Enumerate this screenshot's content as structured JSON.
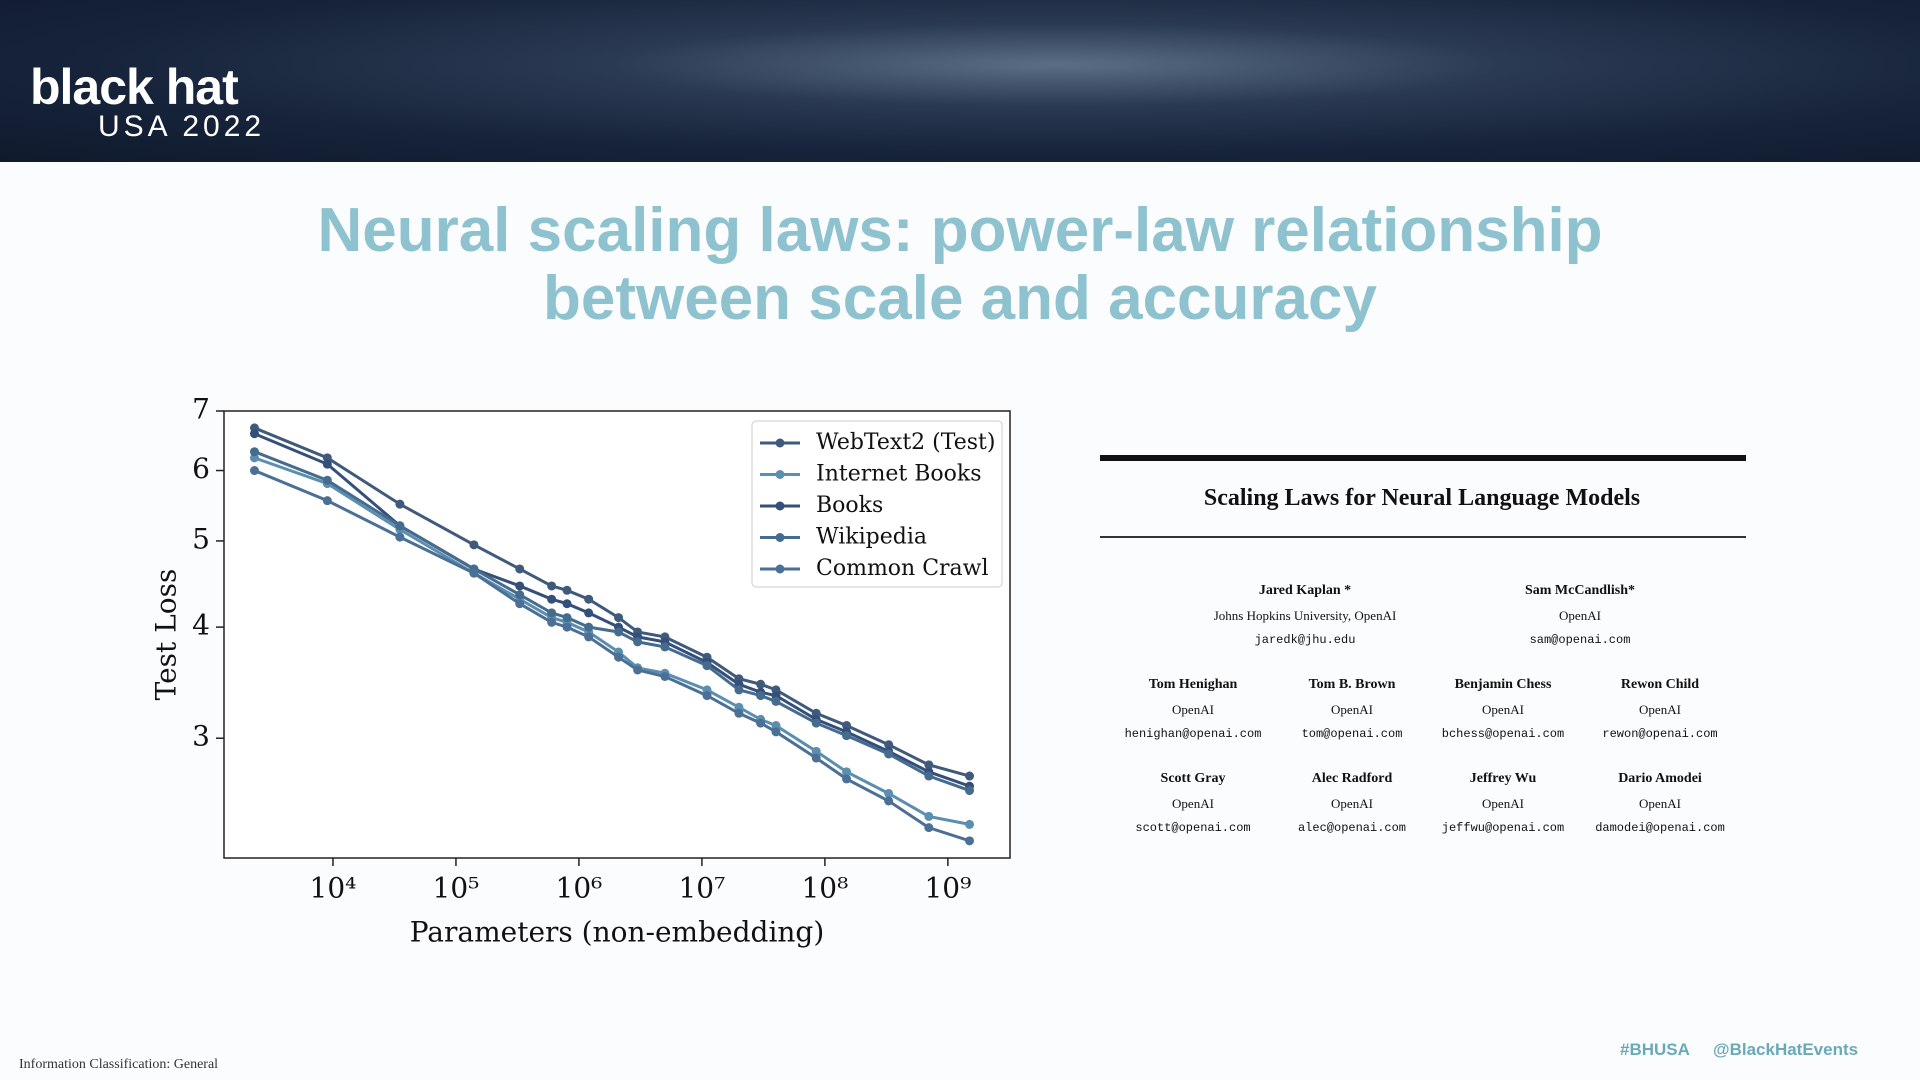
{
  "header": {
    "logo": "black hat",
    "event": "USA 2022"
  },
  "slide": {
    "title": [
      "Neural scaling laws: power-law relationship",
      "between scale and accuracy"
    ]
  },
  "chart_data": {
    "type": "line",
    "x_label": "Parameters (non-embedding)",
    "y_label": "Test Loss",
    "log_x": true,
    "log_y": true,
    "legend": "upper right",
    "xlim": [
      1300,
      3200000000
    ],
    "ylim": [
      2.2,
      7
    ],
    "xticks": [
      {
        "value": 10000,
        "label": "10⁴"
      },
      {
        "value": 100000,
        "label": "10⁵"
      },
      {
        "value": 1000000,
        "label": "10⁶"
      },
      {
        "value": 10000000,
        "label": "10⁷"
      },
      {
        "value": 100000000,
        "label": "10⁸"
      },
      {
        "value": 1000000000,
        "label": "10⁹"
      }
    ],
    "yticks": [
      3,
      4,
      5,
      6,
      7
    ],
    "x": [
      2300,
      9000,
      35000,
      140000,
      330000,
      600000,
      800000,
      1200000,
      2100000,
      3000000,
      5000000,
      11000000,
      20000000,
      30000000,
      40000000,
      85000000,
      150000000,
      330000000,
      700000000,
      1500000000
    ],
    "series": [
      {
        "name": "WebText2 (Test)",
        "color": "#3f5a7a",
        "values": [
          6.7,
          6.2,
          5.5,
          4.95,
          4.65,
          4.45,
          4.4,
          4.3,
          4.1,
          3.95,
          3.9,
          3.7,
          3.5,
          3.45,
          3.4,
          3.2,
          3.1,
          2.95,
          2.8,
          2.72
        ]
      },
      {
        "name": "Internet Books",
        "color": "#5b8fb0",
        "values": [
          6.2,
          5.8,
          5.15,
          4.6,
          4.3,
          4.1,
          4.05,
          3.95,
          3.75,
          3.6,
          3.55,
          3.4,
          3.25,
          3.15,
          3.1,
          2.9,
          2.75,
          2.6,
          2.45,
          2.4
        ]
      },
      {
        "name": "Books",
        "color": "#34507a",
        "values": [
          6.6,
          6.1,
          5.2,
          4.65,
          4.45,
          4.3,
          4.25,
          4.15,
          4.0,
          3.9,
          3.85,
          3.65,
          3.45,
          3.38,
          3.35,
          3.15,
          3.05,
          2.9,
          2.75,
          2.65
        ]
      },
      {
        "name": "Wikipedia",
        "color": "#456c8e",
        "values": [
          6.3,
          5.85,
          5.2,
          4.65,
          4.35,
          4.15,
          4.1,
          4.0,
          3.95,
          3.85,
          3.8,
          3.62,
          3.4,
          3.35,
          3.3,
          3.12,
          3.02,
          2.88,
          2.72,
          2.62
        ]
      },
      {
        "name": "Common Crawl",
        "color": "#4c6f96",
        "values": [
          6.0,
          5.55,
          5.05,
          4.6,
          4.25,
          4.05,
          4.0,
          3.9,
          3.7,
          3.58,
          3.52,
          3.35,
          3.2,
          3.12,
          3.05,
          2.85,
          2.7,
          2.55,
          2.38,
          2.3
        ]
      }
    ]
  },
  "paper": {
    "title": "Scaling Laws for Neural Language Models",
    "authors": [
      {
        "name": "Jared Kaplan *",
        "affiliation": "Johns Hopkins University, OpenAI",
        "email": "jaredk@jhu.edu"
      },
      {
        "name": "Sam McCandlish*",
        "affiliation": "OpenAI",
        "email": "sam@openai.com"
      },
      {
        "name": "Tom Henighan",
        "affiliation": "OpenAI",
        "email": "henighan@openai.com"
      },
      {
        "name": "Tom B. Brown",
        "affiliation": "OpenAI",
        "email": "tom@openai.com"
      },
      {
        "name": "Benjamin Chess",
        "affiliation": "OpenAI",
        "email": "bchess@openai.com"
      },
      {
        "name": "Rewon Child",
        "affiliation": "OpenAI",
        "email": "rewon@openai.com"
      },
      {
        "name": "Scott Gray",
        "affiliation": "OpenAI",
        "email": "scott@openai.com"
      },
      {
        "name": "Alec Radford",
        "affiliation": "OpenAI",
        "email": "alec@openai.com"
      },
      {
        "name": "Jeffrey Wu",
        "affiliation": "OpenAI",
        "email": "jeffwu@openai.com"
      },
      {
        "name": "Dario Amodei",
        "affiliation": "OpenAI",
        "email": "damodei@openai.com"
      }
    ]
  },
  "footer": {
    "classification": "Information Classification: General",
    "hashtag": "#BHUSA",
    "handle": "@BlackHatEvents"
  }
}
